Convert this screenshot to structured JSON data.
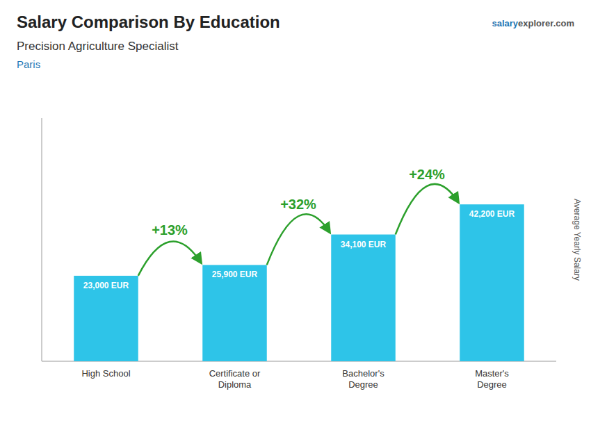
{
  "chart_data": {
    "type": "bar",
    "title": "Salary Comparison By Education",
    "subtitle": "Precision Agriculture Specialist",
    "location": "Paris",
    "watermark": [
      "salary",
      "explorer.com"
    ],
    "ylabel": "Average Yearly Salary",
    "categories": [
      "High School",
      "Certificate or\nDiploma",
      "Bachelor's\nDegree",
      "Master's\nDegree"
    ],
    "values": [
      23000,
      25900,
      34100,
      42200
    ],
    "value_labels": [
      "23,000 EUR",
      "25,900 EUR",
      "34,100 EUR",
      "42,200 EUR"
    ],
    "annotations": [
      "+13%",
      "+32%",
      "+24%"
    ],
    "color": "#2EC4E8",
    "ylim": [
      0,
      65410
    ],
    "yticks": [],
    "tick_labels": "x",
    "data_labels": true
  }
}
